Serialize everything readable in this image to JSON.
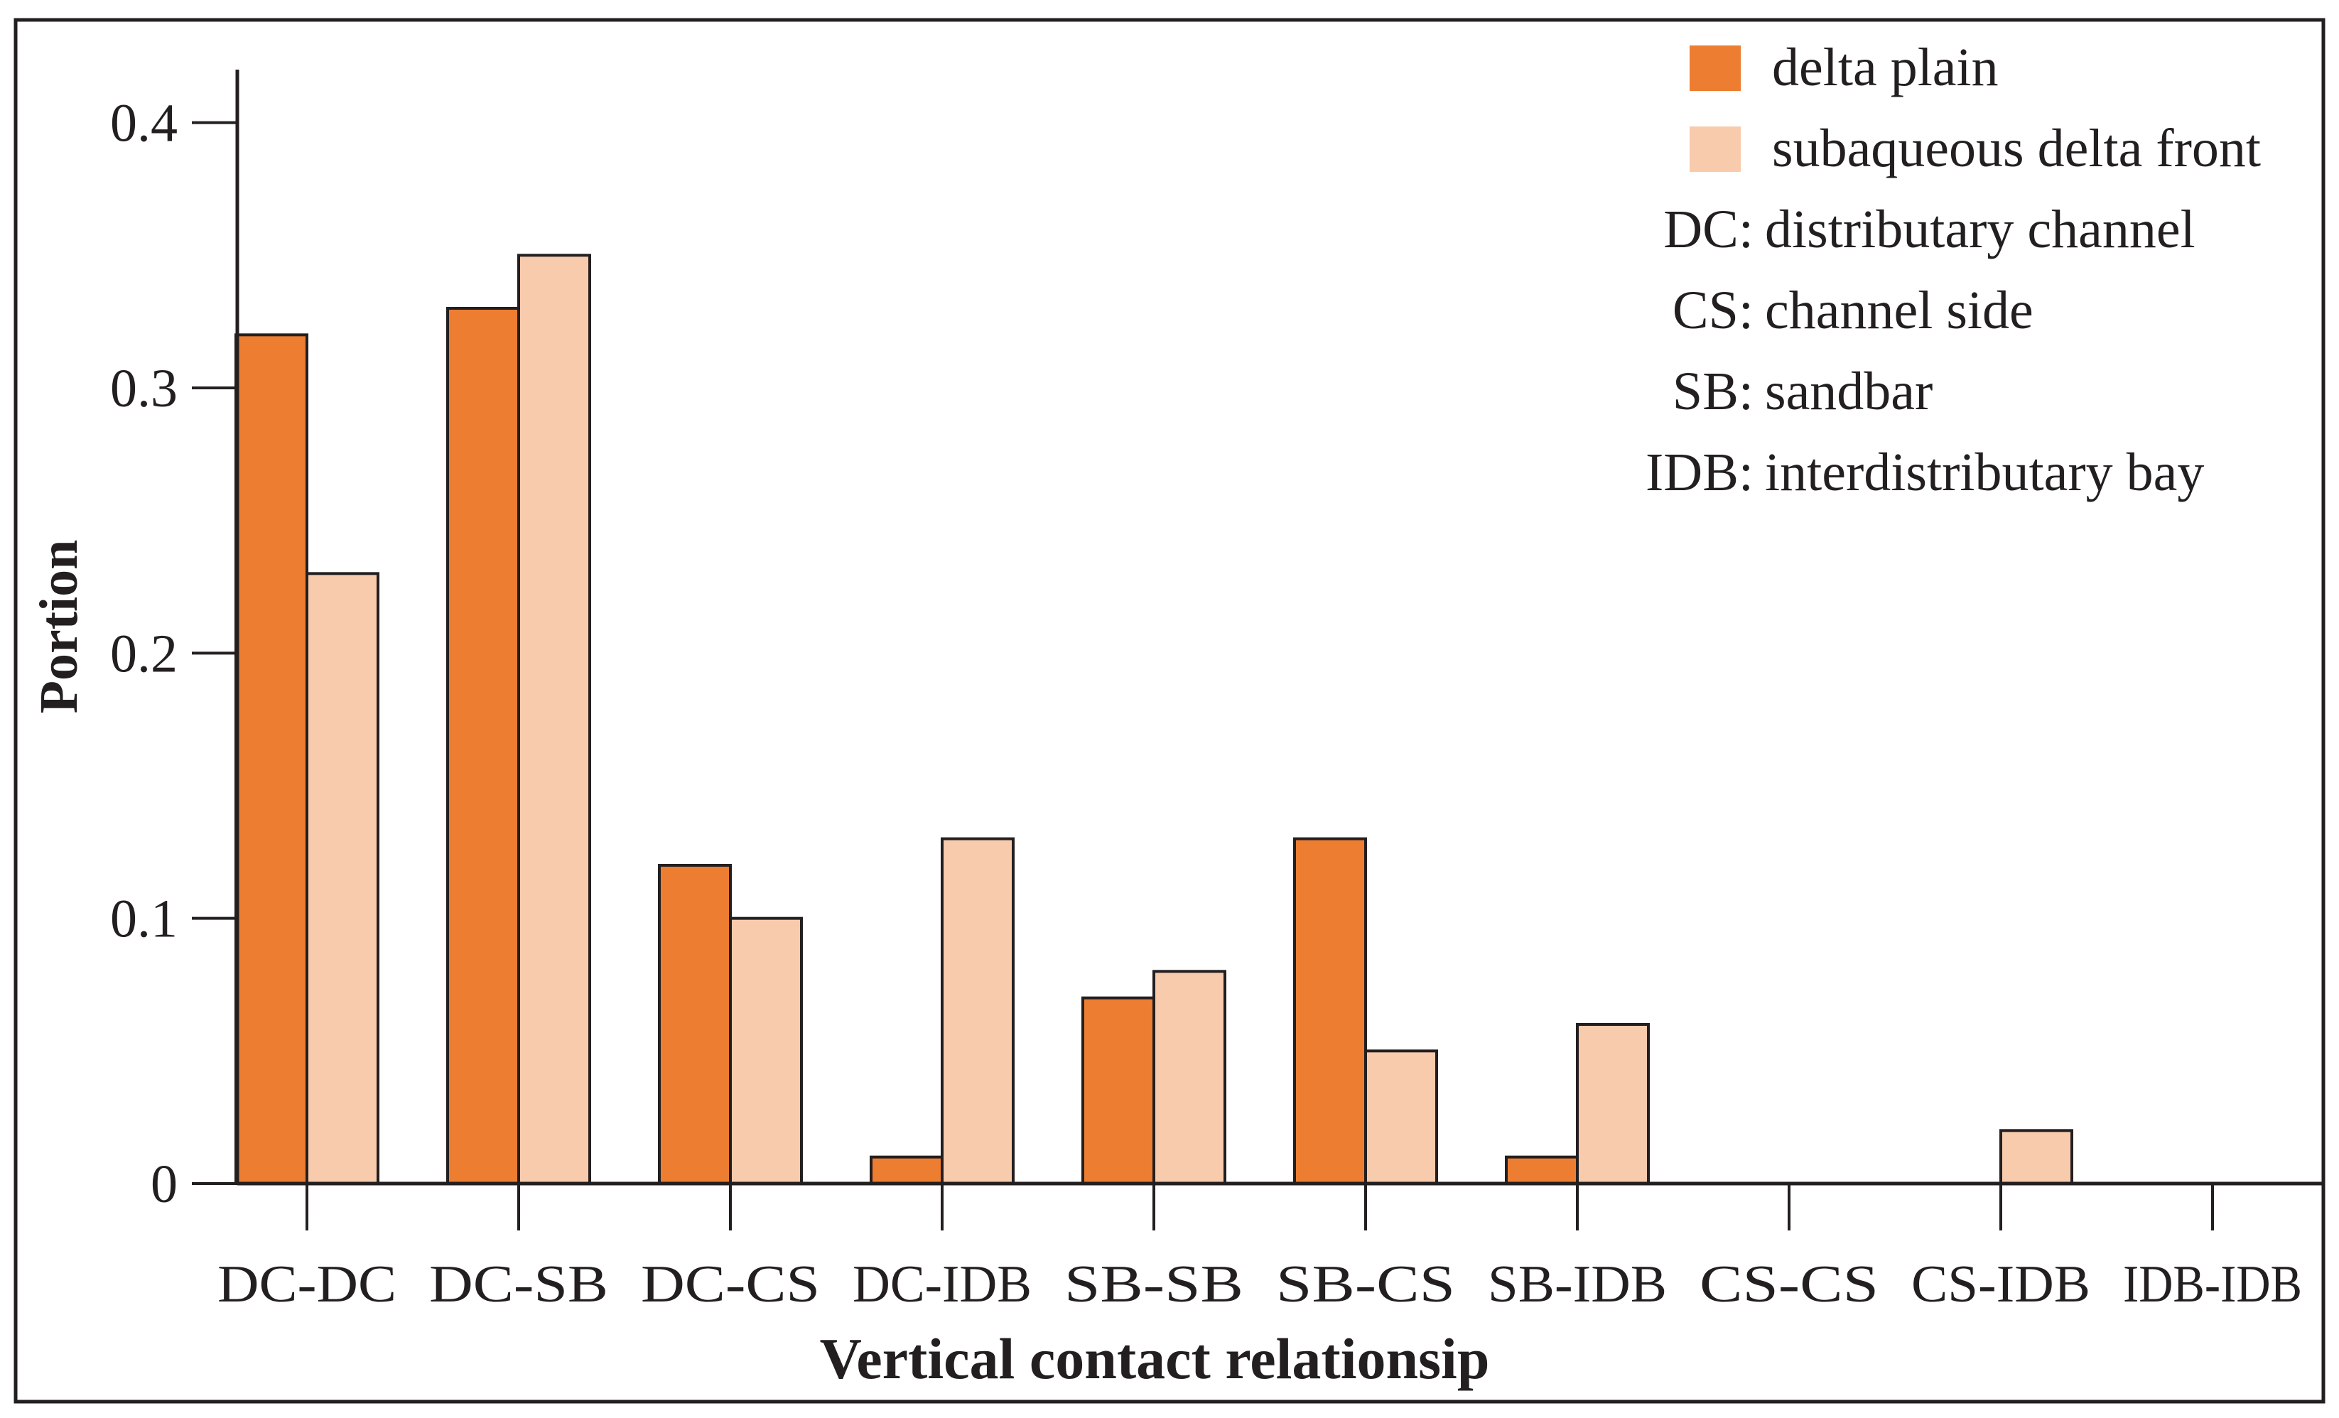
{
  "chart_data": {
    "type": "bar",
    "title": "",
    "xlabel": "Vertical contact relationsip",
    "ylabel": "Portion",
    "ylim": [
      0,
      0.42
    ],
    "yticks": [
      0,
      0.1,
      0.2,
      0.3,
      0.4
    ],
    "ytick_labels": [
      "0",
      "0.1",
      "0.2",
      "0.3",
      "0.4"
    ],
    "categories": [
      "DC-DC",
      "DC-SB",
      "DC-CS",
      "DC-IDB",
      "SB-SB",
      "SB-CS",
      "SB-IDB",
      "CS-CS",
      "CS-IDB",
      "IDB-IDB"
    ],
    "series": [
      {
        "name": "delta plain",
        "color": "#ed7d31",
        "values": [
          0.32,
          0.33,
          0.12,
          0.01,
          0.07,
          0.13,
          0.01,
          0,
          0,
          0
        ]
      },
      {
        "name": "subaqueous delta front",
        "color": "#f8cbad",
        "values": [
          0.23,
          0.35,
          0.1,
          0.13,
          0.08,
          0.05,
          0.06,
          0,
          0.02,
          0
        ]
      }
    ],
    "legend": {
      "position": "top-right",
      "entries": [
        "delta plain",
        "subaqueous delta front"
      ],
      "notes": [
        {
          "abbr": "DC:",
          "text": "distributary channel"
        },
        {
          "abbr": "CS:",
          "text": "channel side"
        },
        {
          "abbr": "SB:",
          "text": "sandbar"
        },
        {
          "abbr": "IDB:",
          "text": "interdistributary bay"
        }
      ]
    },
    "grid": false
  }
}
